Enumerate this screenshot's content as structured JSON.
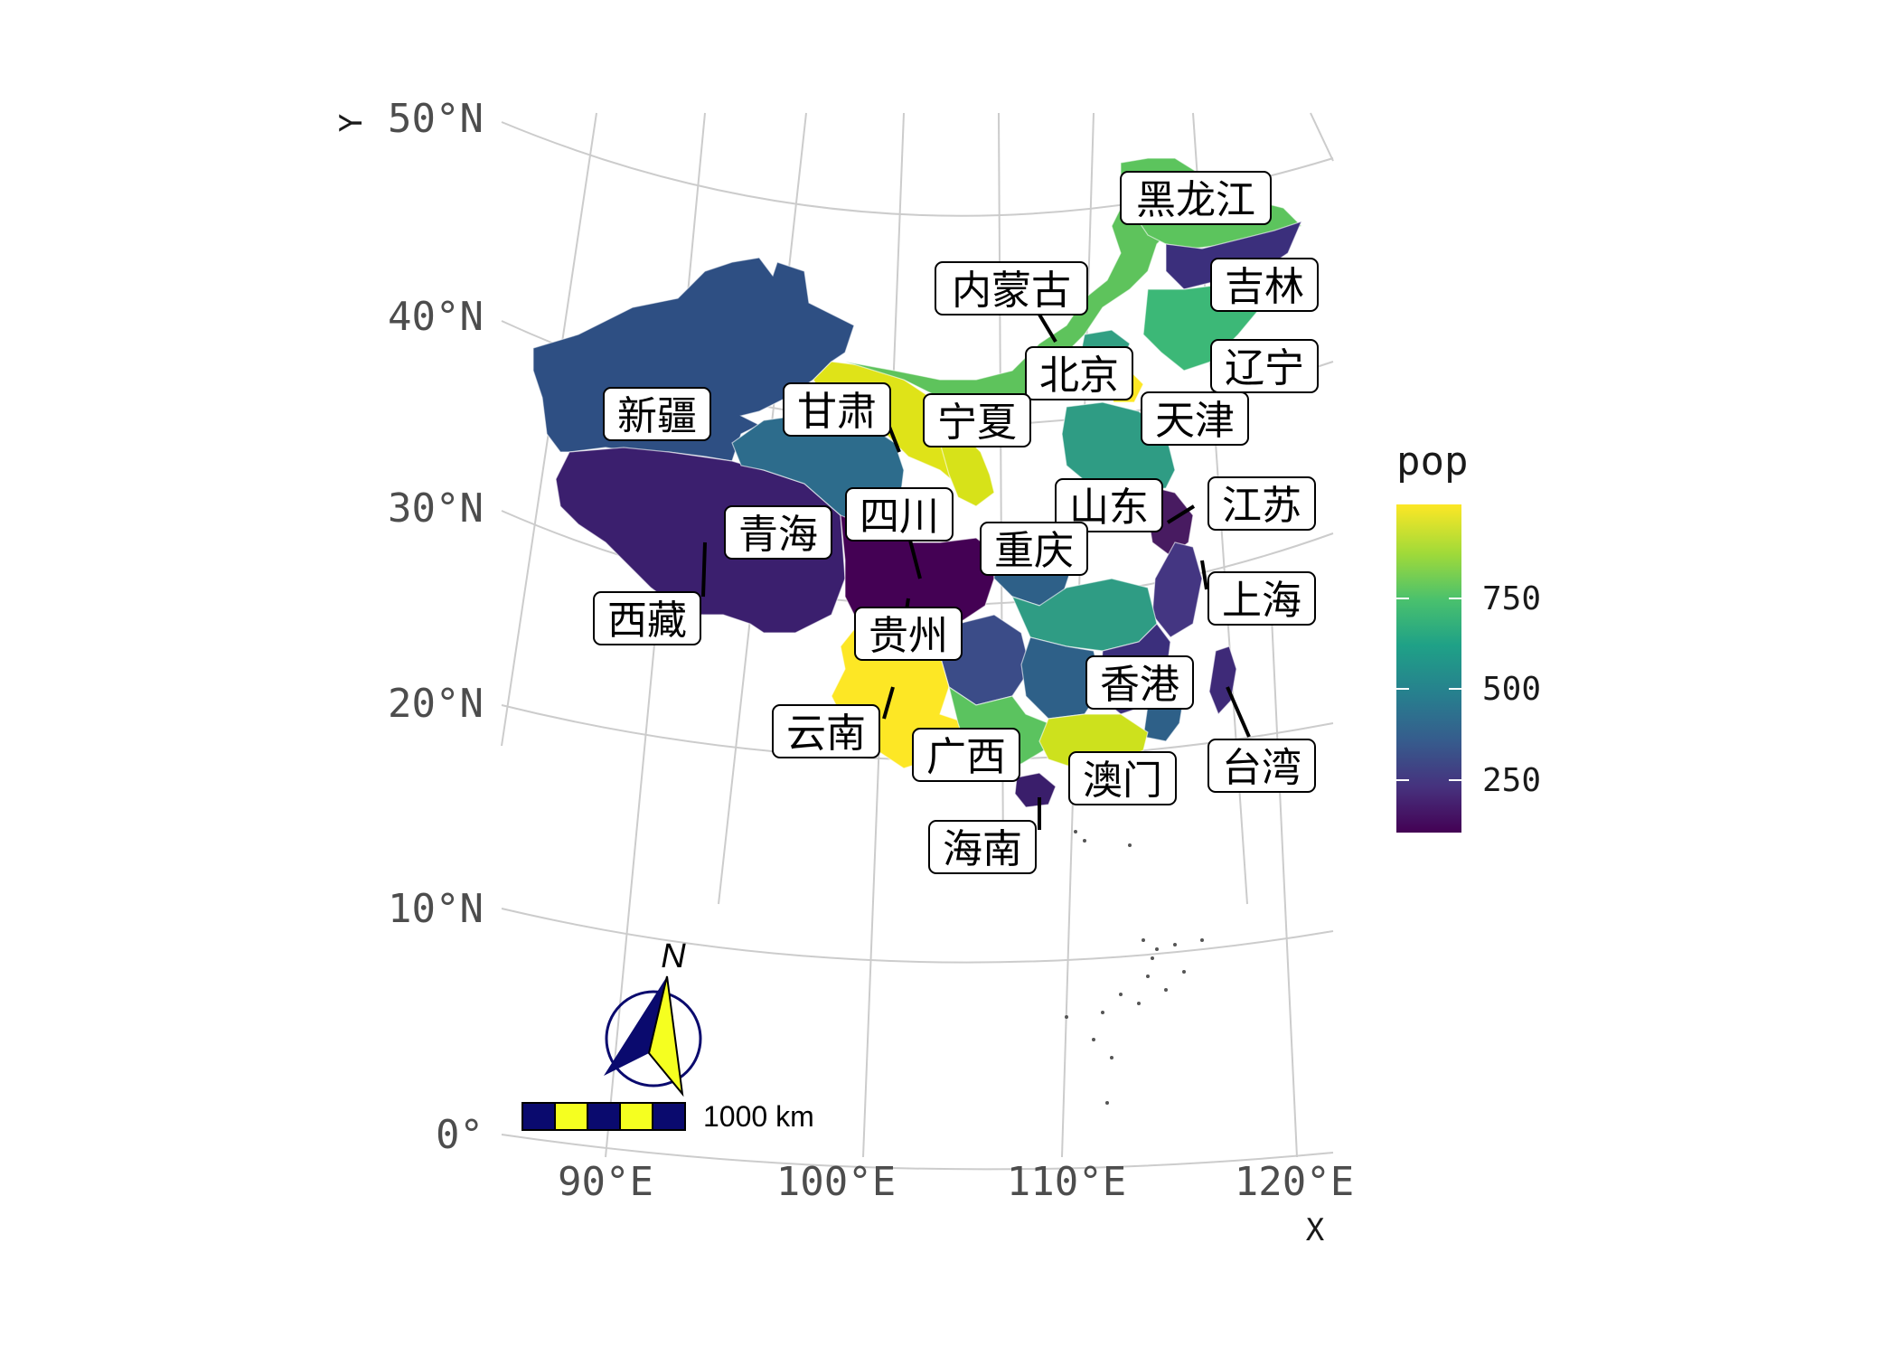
{
  "map": {
    "x_axis_title": "X",
    "y_axis_title": "Y",
    "lon_labels": [
      "90°E",
      "100°E",
      "110°E",
      "120°E"
    ],
    "lat_labels": [
      "50°N",
      "40°N",
      "30°N",
      "20°N",
      "10°N",
      "0°"
    ],
    "legend": {
      "title": "pop",
      "ticks": [
        "750",
        "500",
        "250"
      ],
      "colors": [
        "#fde725",
        "#a0da39",
        "#4ac16d",
        "#1fa187",
        "#277f8e",
        "#365c8d",
        "#46327e",
        "#440154"
      ]
    },
    "scale_bar": {
      "label": "1000 km",
      "colors": [
        "#0a0a6e",
        "#f5ff20"
      ]
    },
    "north_arrow": {
      "label": "N"
    },
    "provinces": [
      {
        "name": "黑龙江",
        "color": "#5cc45d"
      },
      {
        "name": "吉林",
        "color": "#3b2f7c"
      },
      {
        "name": "内蒙古",
        "color": "#5ec35c"
      },
      {
        "name": "辽宁",
        "color": "#3cb877"
      },
      {
        "name": "北京",
        "color": "#32a083"
      },
      {
        "name": "天津",
        "color": "#fde725"
      },
      {
        "name": "宁夏",
        "color": "#d7e219"
      },
      {
        "name": "甘肃",
        "color": "#dfe318"
      },
      {
        "name": "新疆",
        "color": "#2e4f83"
      },
      {
        "name": "青海",
        "color": "#2d6c8c"
      },
      {
        "name": "西藏",
        "color": "#3b1f6e"
      },
      {
        "name": "四川",
        "color": "#440154"
      },
      {
        "name": "山东",
        "color": "#2f9c84"
      },
      {
        "name": "江苏",
        "color": "#481b61"
      },
      {
        "name": "上海",
        "color": "#443682"
      },
      {
        "name": "重庆",
        "color": "#2e6088"
      },
      {
        "name": "贵州",
        "color": "#3b4c88"
      },
      {
        "name": "云南",
        "color": "#fde725"
      },
      {
        "name": "广西",
        "color": "#5bc35f"
      },
      {
        "name": "香港",
        "color": "#cde11d"
      },
      {
        "name": "澳门",
        "color": "#bfde2a"
      },
      {
        "name": "台湾",
        "color": "#3e2a78"
      },
      {
        "name": "海南",
        "color": "#3a1e6b"
      }
    ]
  }
}
